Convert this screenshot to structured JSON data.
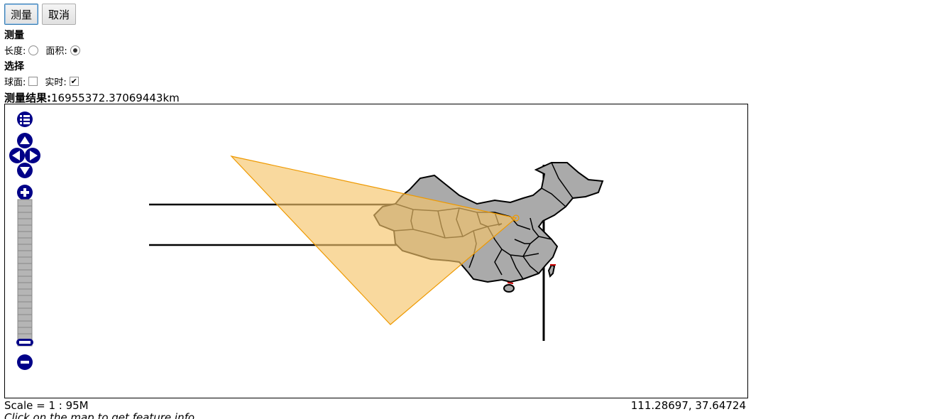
{
  "toolbar": {
    "measure_label": "测量",
    "cancel_label": "取消"
  },
  "measure_section": {
    "title": "测量",
    "length_label": "长度:",
    "area_label": "面积:",
    "selected": "area"
  },
  "select_section": {
    "title": "选择",
    "geodesic_label": "球面:",
    "geodesic_checked": false,
    "immediate_label": "实时:",
    "immediate_checked": true
  },
  "result": {
    "label": "测量结果:",
    "value": "16955372.37069443km"
  },
  "map": {
    "fill_color": "#aaaaaa",
    "stroke_color": "#000000",
    "measure_fill": "#f6c56a",
    "measure_stroke": "#ee9900"
  },
  "footer": {
    "scale": "Scale = 1 : 95M",
    "coordinates": "111.28697, 37.64724",
    "hint": "Click on the map to get feature info"
  }
}
